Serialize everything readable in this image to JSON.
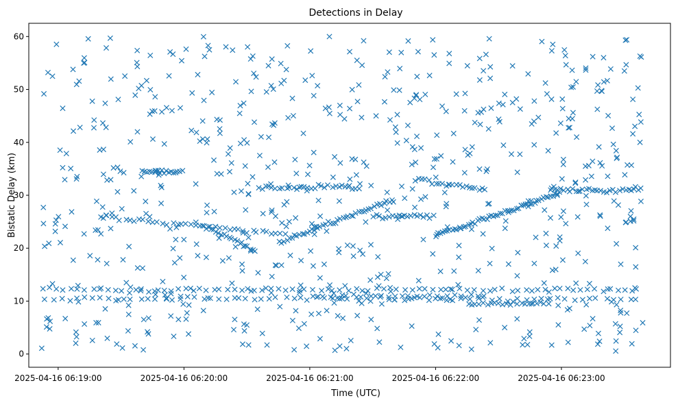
{
  "chart_data": {
    "type": "scatter",
    "title": "Detections in Delay",
    "xlabel": "Time (UTC)",
    "ylabel": "Bistatic Delay (km)",
    "marker": "x",
    "color": "#1f77b4",
    "grid": false,
    "xlim": [
      "2025-04-16 06:18:46",
      "2025-04-16 06:23:52"
    ],
    "ylim": [
      -2.5,
      62.5
    ],
    "x_ticks": [
      "2025-04-16 06:19:00",
      "2025-04-16 06:20:00",
      "2025-04-16 06:21:00",
      "2025-04-16 06:22:00",
      "2025-04-16 06:23:00"
    ],
    "y_ticks": [
      0,
      10,
      20,
      30,
      40,
      50,
      60
    ],
    "clutter_points": {
      "count": 700,
      "time_range": [
        "2025-04-16 06:18:52",
        "2025-04-16 06:23:39"
      ],
      "delay_range": [
        0.5,
        60
      ]
    },
    "tracks": [
      {
        "time": [
          "2025-04-16 06:18:52",
          "2025-04-16 06:23:39"
        ],
        "delay": [
          12.2,
          12.2
        ],
        "count": 85
      },
      {
        "time": [
          "2025-04-16 06:18:52",
          "2025-04-16 06:23:39"
        ],
        "delay": [
          10.4,
          10.4
        ],
        "count": 75
      },
      {
        "time": [
          "2025-04-16 06:19:20",
          "2025-04-16 06:20:50"
        ],
        "delay": [
          26.0,
          22.5
        ],
        "count": 40
      },
      {
        "time": [
          "2025-04-16 06:19:40",
          "2025-04-16 06:20:00"
        ],
        "delay": [
          34.5,
          34.5
        ],
        "count": 18
      },
      {
        "time": [
          "2025-04-16 06:20:10",
          "2025-04-16 06:20:35"
        ],
        "delay": [
          24.0,
          19.5
        ],
        "count": 20
      },
      {
        "time": [
          "2025-04-16 06:20:35",
          "2025-04-16 06:21:25"
        ],
        "delay": [
          31.5,
          31.5
        ],
        "count": 30
      },
      {
        "time": [
          "2025-04-16 06:20:45",
          "2025-04-16 06:21:40"
        ],
        "delay": [
          21.0,
          29.2
        ],
        "count": 45
      },
      {
        "time": [
          "2025-04-16 06:21:30",
          "2025-04-16 06:22:00"
        ],
        "delay": [
          26.0,
          26.0
        ],
        "count": 20
      },
      {
        "time": [
          "2025-04-16 06:21:50",
          "2025-04-16 06:22:25"
        ],
        "delay": [
          33.0,
          31.0
        ],
        "count": 22
      },
      {
        "time": [
          "2025-04-16 06:22:00",
          "2025-04-16 06:23:00"
        ],
        "delay": [
          22.5,
          30.5
        ],
        "count": 55
      },
      {
        "time": [
          "2025-04-16 06:22:55",
          "2025-04-16 06:23:39"
        ],
        "delay": [
          31.0,
          31.0
        ],
        "count": 30
      },
      {
        "time": [
          "2025-04-16 06:21:00",
          "2025-04-16 06:22:25"
        ],
        "delay": [
          11.0,
          11.0
        ],
        "count": 30
      },
      {
        "time": [
          "2025-04-16 06:22:15",
          "2025-04-16 06:22:55"
        ],
        "delay": [
          9.5,
          9.5
        ],
        "count": 22
      }
    ]
  }
}
